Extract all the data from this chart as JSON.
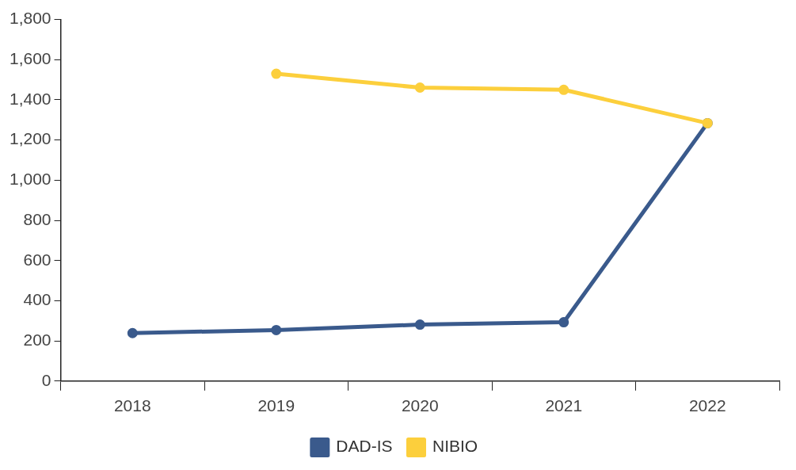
{
  "chart_data": {
    "type": "line",
    "categories": [
      "2018",
      "2019",
      "2020",
      "2021",
      "2022"
    ],
    "series": [
      {
        "name": "DAD-IS",
        "color": "#3a5a8c",
        "values": [
          239,
          254,
          281,
          293,
          1284
        ]
      },
      {
        "name": "NIBIO",
        "color": "#fccf3c",
        "values": [
          null,
          1530,
          1461,
          1450,
          1284
        ]
      }
    ],
    "ylim": [
      0,
      1800
    ],
    "yticks": [
      {
        "value": 0,
        "label": "0"
      },
      {
        "value": 200,
        "label": "200"
      },
      {
        "value": 400,
        "label": "400"
      },
      {
        "value": 600,
        "label": "600"
      },
      {
        "value": 800,
        "label": "800"
      },
      {
        "value": 1000,
        "label": "1,000"
      },
      {
        "value": 1200,
        "label": "1,200"
      },
      {
        "value": 1400,
        "label": "1,400"
      },
      {
        "value": 1600,
        "label": "1,600"
      },
      {
        "value": 1800,
        "label": "1,800"
      }
    ],
    "grid": false,
    "legend": "bottom",
    "marker": "circle",
    "line_style": "solid"
  }
}
